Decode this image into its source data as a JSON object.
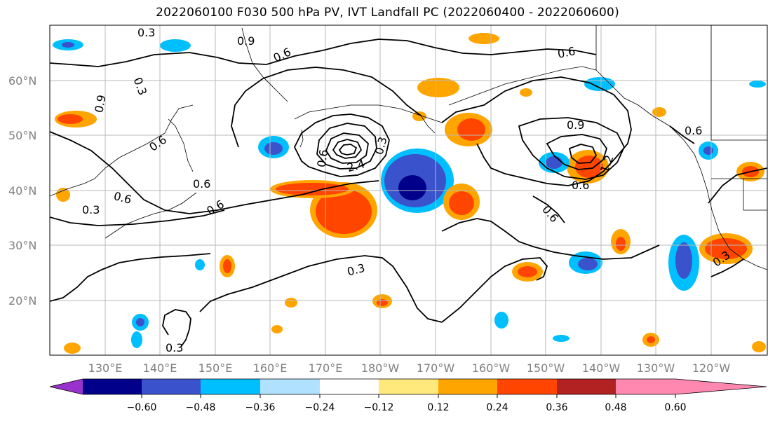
{
  "title": "2022060100 F030 500 hPa PV, IVT Landfall PC (2022060400 - 2022060600)",
  "lat_labels": [
    "60°N",
    "50°N",
    "40°N",
    "30°N",
    "20°N"
  ],
  "lon_labels": [
    "130°E",
    "140°E",
    "150°E",
    "160°E",
    "170°E",
    "180°W",
    "170°W",
    "160°W",
    "150°W",
    "140°W",
    "130°W",
    "120°W"
  ],
  "contour_labels": [
    "0.3",
    "0.9",
    "0.6",
    "0.3",
    "0.9",
    "0.6",
    "0.6",
    "0.6",
    "0.6",
    "0.6",
    "0.3",
    "0.6",
    "0.9",
    "1.2",
    "0.6",
    "0.6",
    "0.6",
    "0.3",
    "0.3",
    "0.3",
    "2.4",
    "0.3"
  ],
  "colorbar": {
    "tick_labels": [
      "−0.60",
      "−0.48",
      "−0.36",
      "−0.24",
      "−0.12",
      "0.12",
      "0.24",
      "0.36",
      "0.48",
      "0.60"
    ],
    "colors": [
      "#9932cc",
      "#00008b",
      "#3a53cc",
      "#00bfff",
      "#b0e2ff",
      "#ffffff",
      "#ffe87c",
      "#ffa500",
      "#ff4500",
      "#b22222",
      "#ff88b0"
    ]
  }
}
